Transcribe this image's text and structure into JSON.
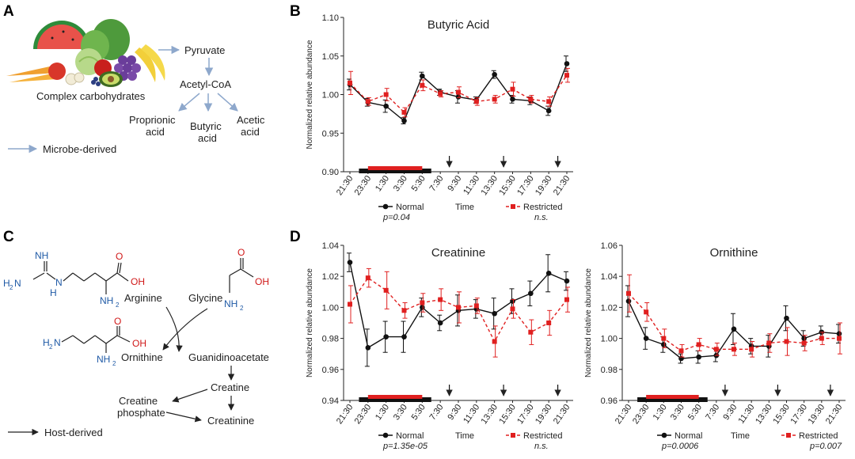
{
  "panels": {
    "a": "A",
    "b": "B",
    "c": "C",
    "d": "D"
  },
  "panel_a": {
    "pyruvate": "Pyruvate",
    "acetylcoa": "Acetyl-CoA",
    "complex_carbs": "Complex carbohydrates",
    "propionic_1": "Proprionic",
    "propionic_2": "acid",
    "butyric_1": "Butyric",
    "butyric_2": "acid",
    "acetic_1": "Acetic",
    "acetic_2": "acid",
    "legend": "Microbe-derived",
    "arrow_color": "#8ea8cc"
  },
  "panel_c": {
    "arginine": "Arginine",
    "glycine": "Glycine",
    "ornithine": "Ornithine",
    "guanidinoacetate": "Guanidinoacetate",
    "creatine": "Creatine",
    "creatine_phosphate_1": "Creatine",
    "creatine_phosphate_2": "phosphate",
    "creatinine": "Creatinine",
    "legend": "Host-derived",
    "atom_nh": "NH",
    "atom_h2n": "H",
    "atom_2n": "N",
    "atom_h": "H",
    "atom_n": "N",
    "atom_nh2": "NH",
    "atom_o": "O",
    "atom_oh": "OH",
    "atom_h2n_orn": "H",
    "sub2": "2",
    "n_color": "#1f5aa6",
    "o_color": "#d01818"
  },
  "common": {
    "ylabel": "Normalized relative abundance",
    "xlabel": "Time",
    "normal_label": "Normal",
    "restricted_label": "Restricted",
    "normal_color": "#111111",
    "restricted_color": "#e02020"
  },
  "chart_data": [
    {
      "id": "butyric",
      "type": "line",
      "title": "Butyric Acid",
      "categories": [
        "21:30",
        "23:30",
        "1:30",
        "3:30",
        "5:30",
        "7:30",
        "9:30",
        "11:30",
        "13:30",
        "15:30",
        "17:30",
        "19:30",
        "21:30"
      ],
      "ylim": [
        0.9,
        1.1
      ],
      "yticks": [
        0.9,
        0.95,
        1.0,
        1.05,
        1.1
      ],
      "ytick_labels": [
        "0.90",
        "0.95",
        "1.00",
        "1.05",
        "1.10"
      ],
      "series": [
        {
          "name": "Normal",
          "style": "solid",
          "values": [
            1.013,
            0.99,
            0.985,
            0.966,
            1.024,
            1.003,
            0.997,
            0.993,
            1.026,
            0.994,
            0.992,
            0.979,
            1.04
          ],
          "errors": [
            0.007,
            0.005,
            0.008,
            0.004,
            0.005,
            0.004,
            0.008,
            0.004,
            0.005,
            0.005,
            0.005,
            0.006,
            0.01
          ]
        },
        {
          "name": "Restricted",
          "style": "dashed",
          "values": [
            1.015,
            0.991,
            1.0,
            0.977,
            1.012,
            1.001,
            1.003,
            0.991,
            0.994,
            1.007,
            0.994,
            0.991,
            1.025
          ],
          "errors": [
            0.015,
            0.005,
            0.008,
            0.006,
            0.007,
            0.004,
            0.007,
            0.005,
            0.005,
            0.009,
            0.005,
            0.006,
            0.009
          ]
        }
      ],
      "pvalue_normal": "p=0.04",
      "pvalue_restricted": "n.s.",
      "dark_bar": [
        0.5,
        4.5
      ],
      "red_bar": [
        1,
        4
      ],
      "arrows_at": [
        5.5,
        8.5,
        11.5
      ]
    },
    {
      "id": "creatinine",
      "type": "line",
      "title": "Creatinine",
      "categories": [
        "21:30",
        "23:30",
        "1:30",
        "3:30",
        "5:30",
        "7:30",
        "9:30",
        "11:30",
        "13:30",
        "15:30",
        "17:30",
        "19:30",
        "21:30"
      ],
      "ylim": [
        0.94,
        1.04
      ],
      "yticks": [
        0.94,
        0.96,
        0.98,
        1.0,
        1.02,
        1.04
      ],
      "ytick_labels": [
        "0.94",
        "0.96",
        "0.98",
        "1.00",
        "1.02",
        "1.04"
      ],
      "series": [
        {
          "name": "Normal",
          "style": "solid",
          "values": [
            1.029,
            0.974,
            0.981,
            0.981,
            1.0,
            0.99,
            0.998,
            0.999,
            0.996,
            1.004,
            1.009,
            1.022,
            1.017
          ],
          "errors": [
            0.006,
            0.012,
            0.01,
            0.01,
            0.006,
            0.005,
            0.01,
            0.006,
            0.01,
            0.008,
            0.008,
            0.012,
            0.006
          ]
        },
        {
          "name": "Restricted",
          "style": "dashed",
          "values": [
            1.002,
            1.019,
            1.011,
            0.998,
            1.003,
            1.005,
            1.0,
            1.001,
            0.978,
            0.999,
            0.984,
            0.99,
            1.005
          ],
          "errors": [
            0.012,
            0.006,
            0.012,
            0.005,
            0.006,
            0.007,
            0.01,
            0.005,
            0.01,
            0.006,
            0.008,
            0.008,
            0.008
          ]
        }
      ],
      "pvalue_normal": "p=1.35e-05",
      "pvalue_restricted": "n.s.",
      "dark_bar": [
        0.5,
        4.5
      ],
      "red_bar": [
        1,
        4
      ],
      "arrows_at": [
        5.5,
        8.5,
        11.5
      ]
    },
    {
      "id": "ornithine",
      "type": "line",
      "title": "Ornithine",
      "categories": [
        "21:30",
        "23:30",
        "1:30",
        "3:30",
        "5:30",
        "7:30",
        "9:30",
        "11:30",
        "13:30",
        "15:30",
        "17:30",
        "19:30",
        "21:30"
      ],
      "ylim": [
        0.96,
        1.06
      ],
      "yticks": [
        0.96,
        0.98,
        1.0,
        1.02,
        1.04,
        1.06
      ],
      "ytick_labels": [
        "0.96",
        "0.98",
        "1.00",
        "1.02",
        "1.04",
        "1.06"
      ],
      "series": [
        {
          "name": "Normal",
          "style": "solid",
          "values": [
            1.024,
            1.0,
            0.996,
            0.987,
            0.988,
            0.989,
            1.006,
            0.995,
            0.995,
            1.013,
            1.0,
            1.004,
            1.003
          ],
          "errors": [
            0.01,
            0.007,
            0.005,
            0.003,
            0.004,
            0.004,
            0.01,
            0.005,
            0.007,
            0.008,
            0.005,
            0.004,
            0.006
          ]
        },
        {
          "name": "Restricted",
          "style": "dashed",
          "values": [
            1.029,
            1.017,
            1.0,
            0.992,
            0.996,
            0.993,
            0.993,
            0.993,
            0.997,
            0.998,
            0.997,
            1.0,
            1.0
          ],
          "errors": [
            0.012,
            0.006,
            0.006,
            0.004,
            0.004,
            0.004,
            0.004,
            0.005,
            0.006,
            0.009,
            0.005,
            0.004,
            0.01
          ]
        }
      ],
      "pvalue_normal": "p=0.0006",
      "pvalue_restricted": "p=0.007",
      "dark_bar": [
        0.5,
        4.5
      ],
      "red_bar": [
        1,
        4
      ],
      "arrows_at": [
        5.5,
        8.5,
        11.5
      ]
    }
  ]
}
